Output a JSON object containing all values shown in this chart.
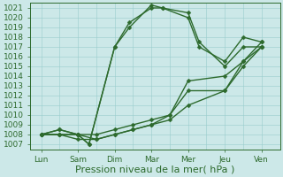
{
  "x_labels": [
    "Lun",
    "Sam",
    "Dim",
    "Mar",
    "Mer",
    "Jeu",
    "Ven"
  ],
  "x_positions": [
    0,
    1,
    2,
    3,
    4,
    5,
    6
  ],
  "lines": [
    {
      "x": [
        0,
        0.5,
        1,
        1.3,
        2,
        2.4,
        3,
        3.3,
        4,
        4.3,
        5,
        5.5,
        6
      ],
      "y": [
        1008,
        1008.5,
        1008,
        1007,
        1017,
        1019,
        1021.3,
        1021,
        1020,
        1017,
        1015.5,
        1018,
        1017.5
      ],
      "color": "#2d6a2d",
      "lw": 1.0,
      "marker": "D",
      "ms": 2.5
    },
    {
      "x": [
        0,
        0.5,
        1,
        1.3,
        2,
        2.4,
        3,
        3.3,
        4,
        4.3,
        5,
        5.5,
        6
      ],
      "y": [
        1008,
        1008.5,
        1008,
        1007,
        1017,
        1019.5,
        1021,
        1021,
        1020.5,
        1017.5,
        1015,
        1017,
        1017
      ],
      "color": "#2d6a2d",
      "lw": 1.0,
      "marker": "D",
      "ms": 2.5
    },
    {
      "x": [
        0,
        0.5,
        1,
        1.5,
        2,
        2.5,
        3,
        3.5,
        4,
        5,
        5.5,
        6
      ],
      "y": [
        1008,
        1008,
        1008,
        1008,
        1008.5,
        1009,
        1009.5,
        1010,
        1013.5,
        1014,
        1015.5,
        1017.5
      ],
      "color": "#2d6a2d",
      "lw": 1.0,
      "marker": "D",
      "ms": 2.5
    },
    {
      "x": [
        0,
        0.5,
        1,
        1.5,
        2,
        2.5,
        3,
        3.5,
        4,
        5,
        5.5,
        6
      ],
      "y": [
        1008,
        1008,
        1008,
        1007.5,
        1008,
        1008.5,
        1009,
        1010,
        1012.5,
        1012.5,
        1015.5,
        1017
      ],
      "color": "#2d6a2d",
      "lw": 1.0,
      "marker": "D",
      "ms": 2.5
    },
    {
      "x": [
        0,
        0.5,
        1,
        1.5,
        2,
        2.5,
        3,
        3.5,
        4,
        5,
        5.5,
        6
      ],
      "y": [
        1008,
        1008,
        1007.5,
        1007.5,
        1008,
        1008.5,
        1009,
        1009.5,
        1011,
        1012.5,
        1015,
        1017
      ],
      "color": "#2d6a2d",
      "lw": 1.0,
      "marker": "D",
      "ms": 2.5
    }
  ],
  "xlabel": "Pression niveau de la mer( hPa )",
  "ylim": [
    1006.5,
    1021.5
  ],
  "ytick_min": 1007,
  "ytick_max": 1021,
  "background_color": "#cce8e8",
  "grid_color": "#99cccc",
  "line_color": "#2d6a2d",
  "axis_color": "#2d6a2d",
  "xlabel_fontsize": 8,
  "tick_fontsize": 6.5
}
